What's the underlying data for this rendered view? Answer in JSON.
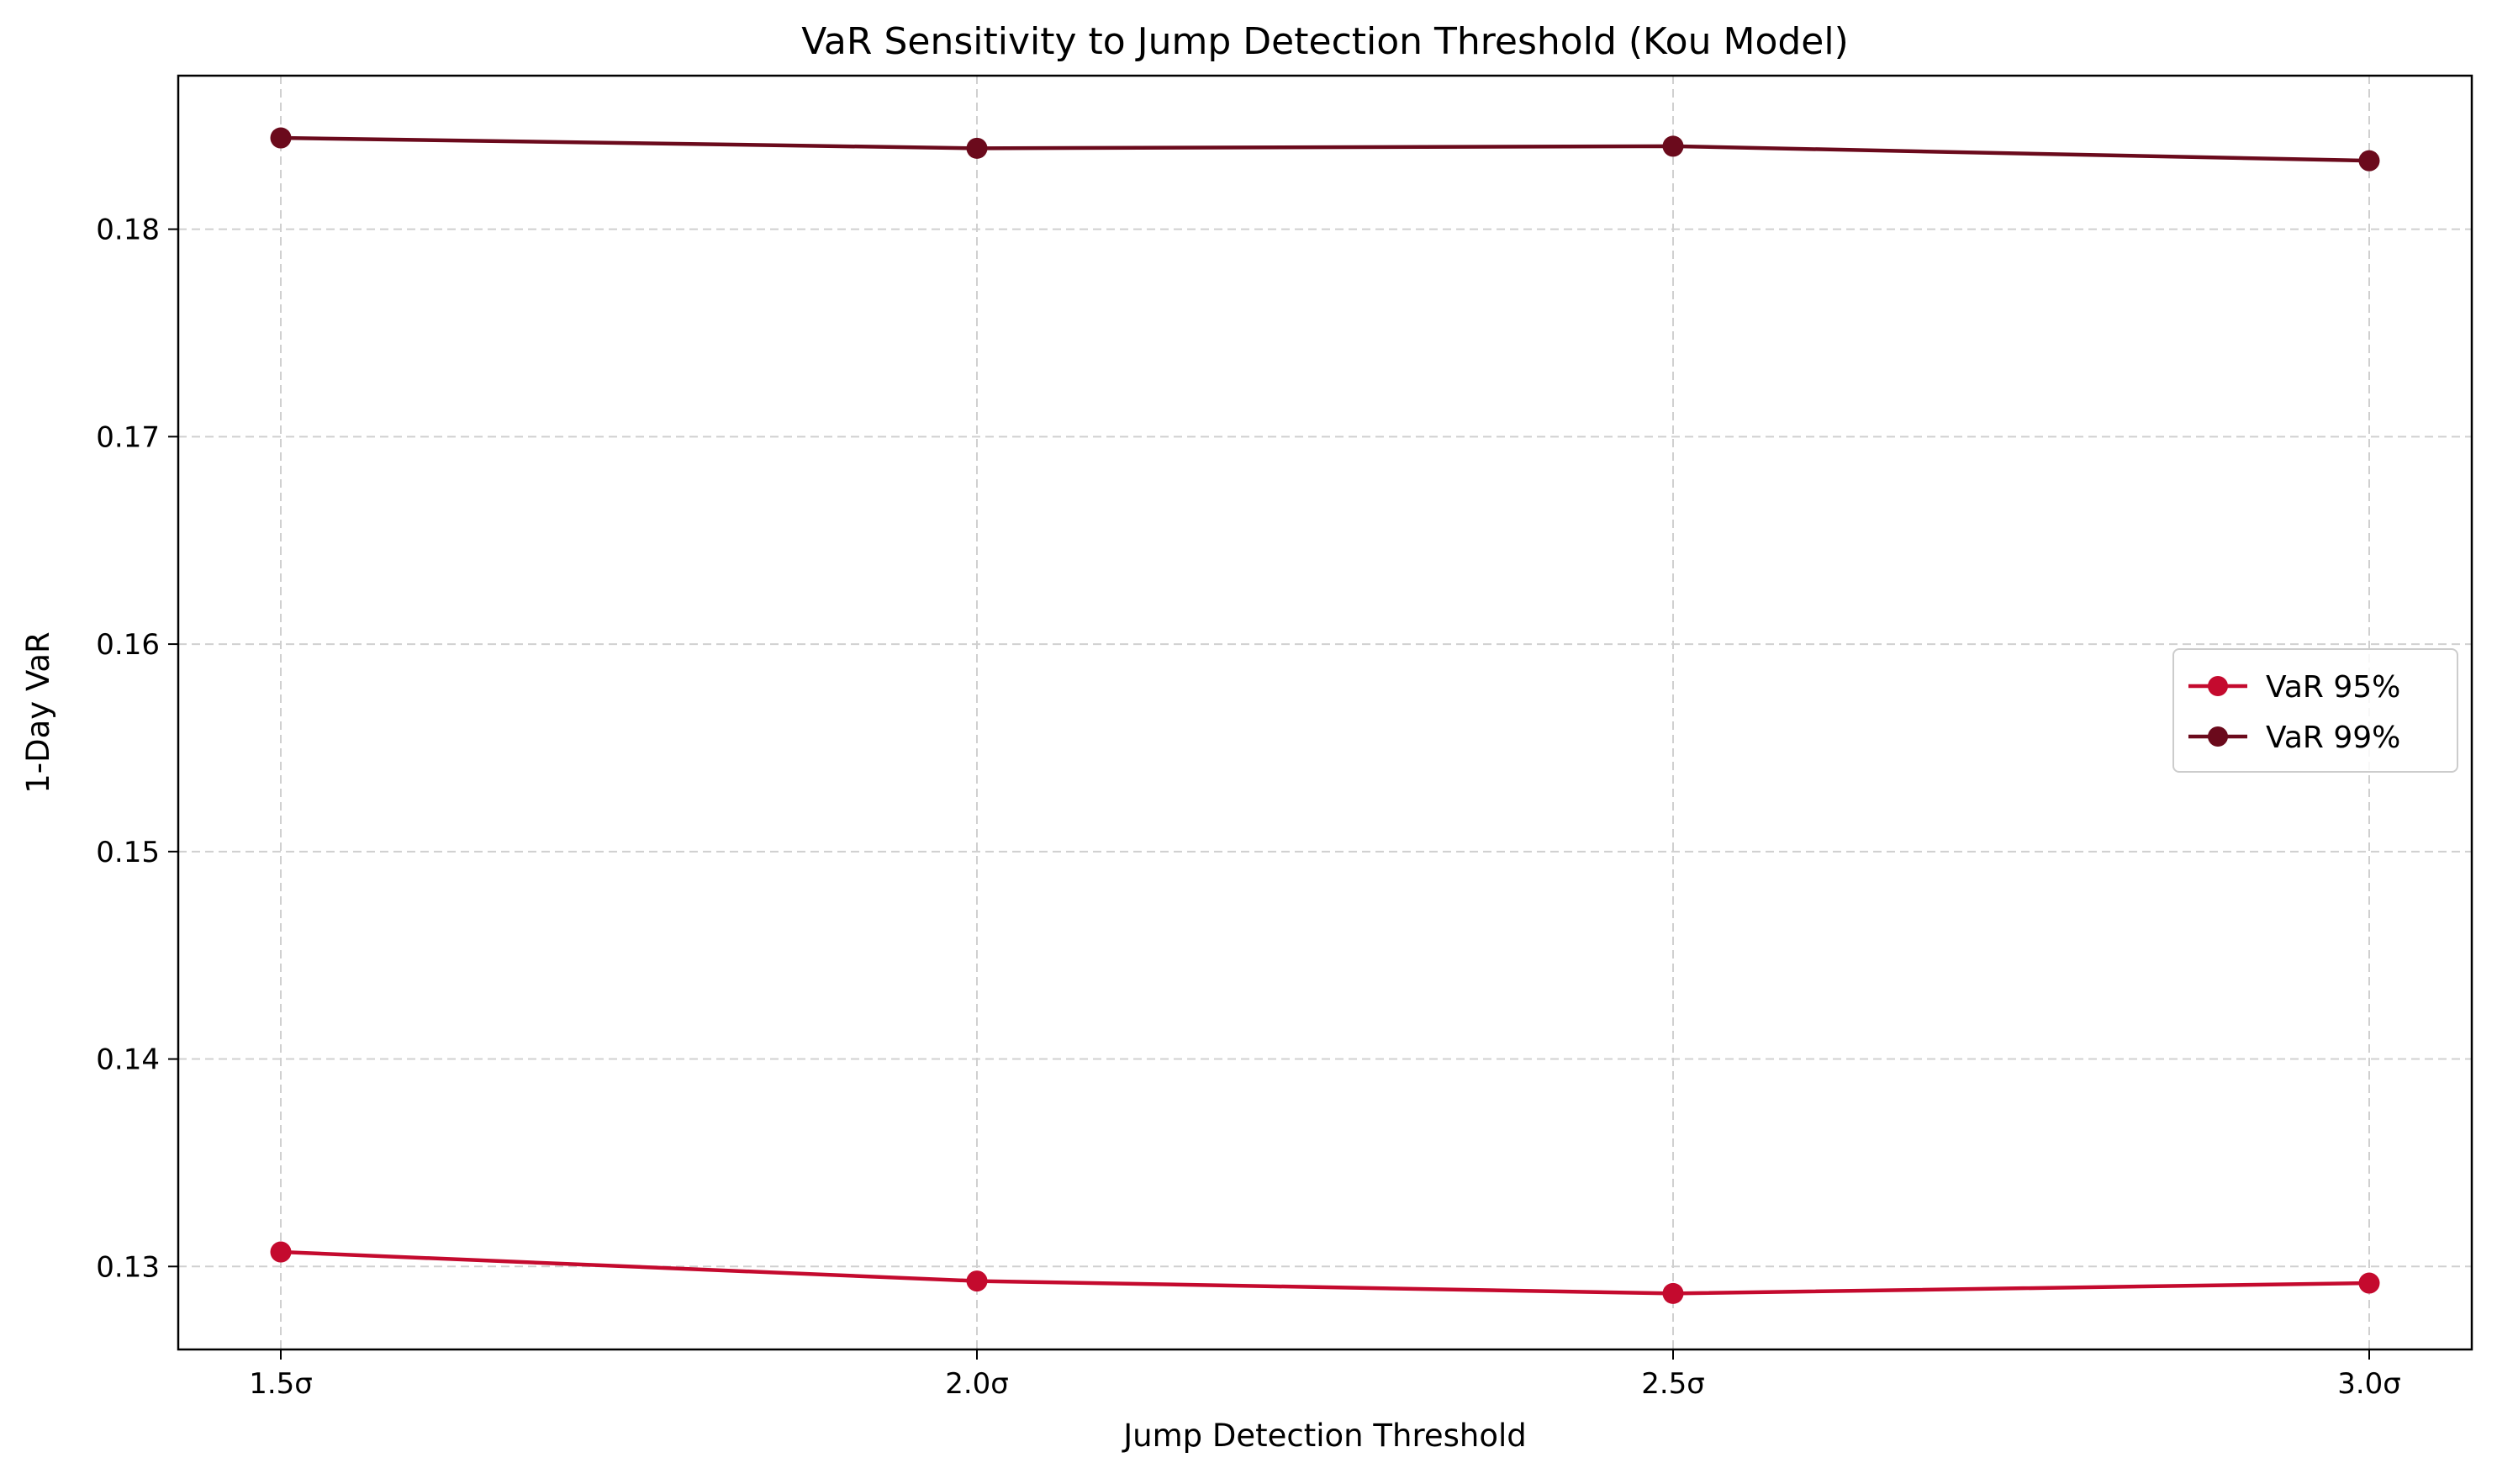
{
  "chart_data": {
    "type": "line",
    "title": "VaR Sensitivity to Jump Detection Threshold (Kou Model)",
    "xlabel": "Jump Detection Threshold",
    "ylabel": "1-Day VaR",
    "categories": [
      "1.5σ",
      "2.0σ",
      "2.5σ",
      "3.0σ"
    ],
    "y_ticks": [
      0.13,
      0.14,
      0.15,
      0.16,
      0.17,
      0.18
    ],
    "y_tick_labels": [
      "0.13",
      "0.14",
      "0.15",
      "0.16",
      "0.17",
      "0.18"
    ],
    "ylim": [
      0.126,
      0.1874
    ],
    "grid": true,
    "legend_position": "center-right",
    "series": [
      {
        "name": "VaR 95%",
        "color": "#c40a2e",
        "marker": "circle",
        "values": [
          0.1307,
          0.1293,
          0.1287,
          0.1292
        ]
      },
      {
        "name": "VaR 99%",
        "color": "#6b0a1c",
        "marker": "circle",
        "values": [
          0.1844,
          0.1839,
          0.184,
          0.1833
        ]
      }
    ]
  }
}
